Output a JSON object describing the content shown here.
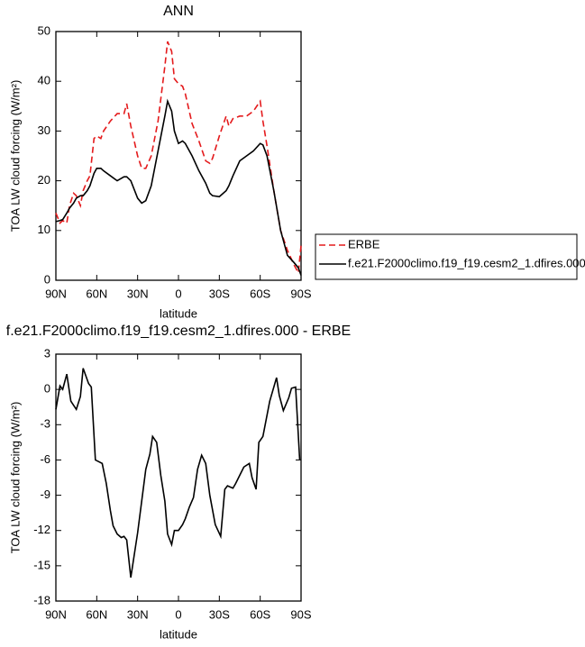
{
  "chart_data": [
    {
      "type": "line",
      "title": "ANN",
      "xlabel": "latitude",
      "ylabel": "TOA LW cloud forcing (W/m²)",
      "x": [
        90,
        87,
        85,
        82,
        80,
        77,
        75,
        72,
        70,
        67,
        65,
        62,
        60,
        57,
        55,
        50,
        45,
        40,
        38,
        35,
        30,
        27,
        24,
        20,
        15,
        10,
        8,
        5,
        3,
        0,
        -3,
        -5,
        -10,
        -15,
        -20,
        -23,
        -25,
        -30,
        -35,
        -37,
        -40,
        -45,
        -50,
        -55,
        -60,
        -62,
        -65,
        -70,
        -75,
        -80,
        -85,
        -88,
        -90
      ],
      "series": [
        {
          "name": "ERBE",
          "color": "#e41a1c",
          "dash": true,
          "values": [
            13.5,
            11.5,
            12,
            11.5,
            15,
            17.5,
            17,
            15,
            18,
            20,
            21,
            28.5,
            29,
            28.5,
            30,
            32,
            33.5,
            33.5,
            35.5,
            31,
            25,
            22.5,
            22.5,
            25,
            32,
            43,
            48,
            46,
            40.5,
            39.5,
            39,
            37.5,
            31.5,
            28,
            24,
            23.5,
            24.5,
            29,
            33,
            31,
            32.5,
            33,
            33,
            34,
            36,
            32,
            27,
            18,
            10,
            6,
            3,
            1.5,
            7
          ]
        },
        {
          "name": "f.e21.F2000climo.f19_f19.cesm2_1.dfires.000",
          "color": "#000000",
          "dash": false,
          "values": [
            11.8,
            12,
            12.2,
            13.5,
            14.5,
            15.5,
            16.5,
            17,
            17,
            18,
            19,
            21.5,
            22.5,
            22.5,
            22,
            21,
            20,
            20.8,
            20.8,
            20,
            16.5,
            15.5,
            16,
            19,
            26,
            33,
            36,
            34,
            30,
            27.5,
            28,
            27.5,
            25,
            22,
            19.5,
            17.5,
            17,
            16.8,
            18,
            19,
            21,
            24,
            25,
            26,
            27.5,
            27.2,
            25,
            18,
            10,
            5,
            3.5,
            2.5,
            1
          ]
        }
      ],
      "xlim": [
        90,
        -90
      ],
      "xticks": [
        {
          "value": 90,
          "label": "90N"
        },
        {
          "value": 60,
          "label": "60N"
        },
        {
          "value": 30,
          "label": "30N"
        },
        0,
        {
          "value": -30,
          "label": "30S"
        },
        {
          "value": -60,
          "label": "60S"
        },
        {
          "value": -90,
          "label": "90S"
        }
      ],
      "ylim": [
        0,
        50
      ],
      "yticks": [
        0,
        10,
        20,
        30,
        40,
        50
      ],
      "legend": "right"
    },
    {
      "type": "line",
      "title": "f.e21.F2000climo.f19_f19.cesm2_1.dfires.000 - ERBE",
      "xlabel": "latitude",
      "ylabel": "TOA LW cloud forcing (W/m²)",
      "x": [
        90,
        87,
        85,
        82,
        79,
        75,
        72,
        70,
        66,
        64,
        61,
        56,
        53,
        50,
        48,
        45,
        42,
        40,
        38,
        35,
        30,
        27,
        24,
        21,
        19,
        16,
        13,
        10,
        8,
        5,
        3,
        0,
        -3,
        -5,
        -8,
        -11,
        -14,
        -17,
        -20,
        -23,
        -27,
        -31,
        -34,
        -36,
        -40,
        -42,
        -45,
        -48,
        -52,
        -54,
        -57,
        -59,
        -62,
        -67,
        -72,
        -74,
        -77,
        -81,
        -83,
        -86,
        -89
      ],
      "color": "#000000",
      "values": [
        -1.7,
        0.3,
        0,
        1.3,
        -1,
        -1.7,
        -0.6,
        1.8,
        0.5,
        0.2,
        -6,
        -6.3,
        -8,
        -10.3,
        -11.6,
        -12.3,
        -12.6,
        -12.5,
        -12.8,
        -16,
        -12.2,
        -9.5,
        -6.8,
        -5.5,
        -4,
        -4.5,
        -7.3,
        -9.5,
        -12.3,
        -13.2,
        -12,
        -12,
        -11.5,
        -11,
        -10,
        -9.2,
        -6.8,
        -5.6,
        -6.3,
        -9,
        -11.5,
        -12.5,
        -8.5,
        -8.2,
        -8.4,
        -8,
        -7.3,
        -6.6,
        -6.3,
        -7.5,
        -8.5,
        -4.5,
        -4,
        -1,
        1,
        -0.5,
        -1.8,
        -0.7,
        0.1,
        0.2,
        -6
      ],
      "xlim": [
        90,
        -90
      ],
      "xticks": [
        {
          "value": 90,
          "label": "90N"
        },
        {
          "value": 60,
          "label": "60N"
        },
        {
          "value": 30,
          "label": "30N"
        },
        0,
        {
          "value": -30,
          "label": "30S"
        },
        {
          "value": -60,
          "label": "60S"
        },
        {
          "value": -90,
          "label": "90S"
        }
      ],
      "ylim": [
        -18,
        3
      ],
      "yticks": [
        3,
        0,
        -3,
        -6,
        -9,
        -12,
        -15,
        -18
      ]
    }
  ]
}
